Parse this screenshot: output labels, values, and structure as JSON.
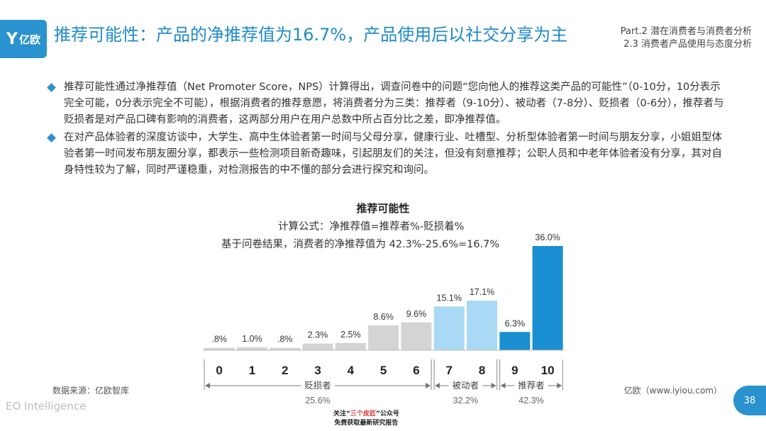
{
  "header": {
    "logo_text": "亿欧",
    "title": "推荐可能性：产品的净推荐值为16.7%，产品使用后以社交分享为主",
    "part_line1": "Part.2 潜在消费者与消费者分析",
    "part_line2": "2.3 消费者产品使用与态度分析"
  },
  "bullets": [
    "推荐可能性通过净推荐值（Net Promoter Score，NPS）计算得出，调查问卷中的问题“您向他人的推荐这类产品的可能性”（0-10分，10分表示完全可能，0分表示完全不可能），根据消费者的推荐意愿，将消费者分为三类：推荐者（9-10分）、被动者（7-8分）、贬损者（0-6分），推荐者与贬损者是对产品口碑有影响的消费者，这两部分用户在用户总数中所占百分比之差，即净推荐值。",
    "在对产品体验者的深度访谈中，大学生、高中生体验者第一时间与父母分享，健康行业、吐槽型、分析型体验者第一时间与朋友分享，小姐姐型体验者第一时间发布朋友圈分享，都表示一些检测项目新奇趣味，引起朋友们的关注，但没有刻意推荐；公职人员和中老年体验者没有分享，其对自身特性较为了解，同时严谨稳重，对检测报告的中不懂的部分会进行探究和询问。"
  ],
  "chart_title": "推荐可能性",
  "formula": "计算公式：净推荐值=推荐者%-贬损着%",
  "nps_result": "基于问卷结果，消费者的净推荐值为 42.3%-25.6%=16.7%",
  "chart_data": {
    "type": "bar",
    "title": "推荐可能性",
    "categories": [
      "0",
      "1",
      "2",
      "3",
      "4",
      "5",
      "6",
      "7",
      "8",
      "9",
      "10"
    ],
    "values": [
      0.8,
      1.0,
      0.8,
      2.3,
      2.5,
      8.6,
      9.6,
      15.1,
      17.1,
      6.3,
      36.0
    ],
    "value_labels": [
      ".8%",
      "1.0%",
      ".8%",
      "2.3%",
      "2.5%",
      "8.6%",
      "9.6%",
      "15.1%",
      "17.1%",
      "6.3%",
      "36.0%"
    ],
    "groups": [
      {
        "name": "贬损者",
        "percent": "25.6%",
        "range": [
          0,
          6
        ],
        "color": "#d4d4d4"
      },
      {
        "name": "被动者",
        "percent": "32.2%",
        "range": [
          7,
          8
        ],
        "color": "#a9d9f4"
      },
      {
        "name": "推荐者",
        "percent": "42.3%",
        "range": [
          9,
          10
        ],
        "color": "#1a8fd1"
      }
    ],
    "ylim": [
      0,
      36
    ]
  },
  "footer": {
    "source_left": "数据来源：亿欧智库",
    "source_right": "亿欧（www.iyiou.com）",
    "brand": "EO Intelligence",
    "page_number": "38",
    "promo_prefix": "关注“",
    "promo_highlight": "三个皮匠",
    "promo_suffix": "”公众号",
    "promo_line2": "免费获取最新研究报告"
  }
}
